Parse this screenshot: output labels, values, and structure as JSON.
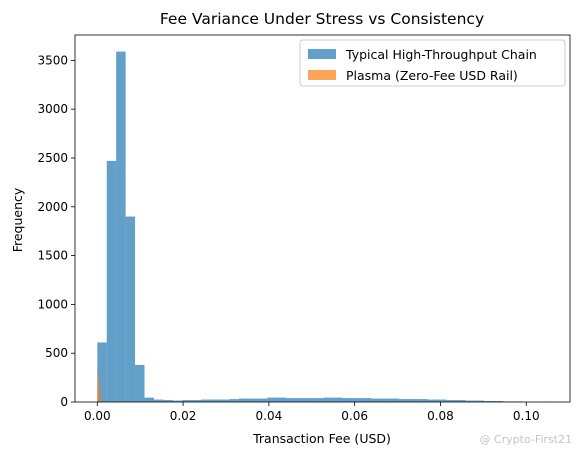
{
  "chart_data": {
    "type": "histogram",
    "title": "Fee Variance Under Stress vs Consistency",
    "xlabel": "Transaction Fee (USD)",
    "ylabel": "Frequency",
    "xlim": [
      -0.0052,
      0.1102
    ],
    "ylim": [
      0,
      3760
    ],
    "xticks": [
      0.0,
      0.02,
      0.04,
      0.06,
      0.08,
      0.1
    ],
    "xtick_labels": [
      "0.00",
      "0.02",
      "0.04",
      "0.06",
      "0.08",
      "0.10"
    ],
    "yticks": [
      0,
      500,
      1000,
      1500,
      2000,
      2500,
      3000,
      3500
    ],
    "ytick_labels": [
      "0",
      "500",
      "1000",
      "1500",
      "2000",
      "2500",
      "3000",
      "3500"
    ],
    "legend_position": "top-right",
    "grid": false,
    "bin_edges": [
      0.0,
      0.0022,
      0.0044,
      0.0066,
      0.0088,
      0.011,
      0.0132,
      0.0154,
      0.0176,
      0.0198,
      0.022,
      0.0242,
      0.0264,
      0.0286,
      0.0308,
      0.033,
      0.0352,
      0.0374,
      0.0396,
      0.0418,
      0.044,
      0.0462,
      0.0484,
      0.0506,
      0.0528,
      0.055,
      0.0572,
      0.0594,
      0.0616,
      0.0638,
      0.066,
      0.0682,
      0.0704,
      0.0726,
      0.0748,
      0.077,
      0.0792,
      0.0814,
      0.0836,
      0.0858,
      0.088,
      0.0902,
      0.0924,
      0.0946,
      0.0968,
      0.099,
      0.1012,
      0.1034,
      0.1056
    ],
    "series": [
      {
        "name": "Typical High-Throughput Chain",
        "color": "#1f77b4",
        "opacity": 0.7,
        "counts": [
          610,
          2470,
          3590,
          1900,
          380,
          45,
          25,
          20,
          15,
          20,
          20,
          25,
          25,
          25,
          30,
          35,
          35,
          35,
          45,
          45,
          40,
          40,
          40,
          40,
          45,
          45,
          40,
          40,
          40,
          35,
          35,
          35,
          30,
          30,
          30,
          25,
          25,
          20,
          20,
          15,
          15,
          10,
          10,
          5,
          5,
          0,
          0,
          2
        ]
      },
      {
        "name": "Plasma (Zero-Fee USD Rail)",
        "color": "#ff7f0e",
        "opacity": 0.7,
        "bin_edges": [
          0.0,
          0.0001,
          0.0002,
          0.0003,
          0.0004,
          0.0005,
          0.0006,
          0.0007,
          0.0008,
          0.0009,
          0.001
        ],
        "counts": [
          340,
          300,
          260,
          220,
          180,
          140,
          100,
          60,
          30,
          10
        ]
      }
    ]
  },
  "watermark": "@ Crypto-First21"
}
